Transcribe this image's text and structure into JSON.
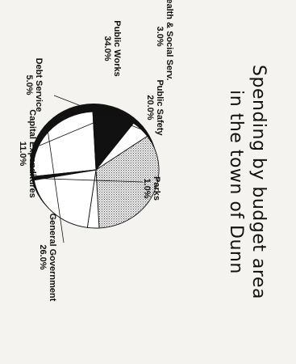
{
  "chart_data": {
    "type": "pie",
    "title": "Spending by budget area",
    "subtitle": "in the town of Dunn",
    "slices": [
      {
        "label": "General Government",
        "value": 26.0,
        "value_label": "26.0%",
        "fill": "#ffffff"
      },
      {
        "label": "Capital Expenditures",
        "value": 11.0,
        "value_label": "11.0%",
        "fill": "#111111"
      },
      {
        "label": "Debt Service",
        "value": 5.0,
        "value_label": "5.0%",
        "fill": "#ffffff"
      },
      {
        "label": "Public Works",
        "value": 34.0,
        "value_label": "34.0%",
        "fill": "dots"
      },
      {
        "label": "Health & Social Serv.",
        "value": 3.0,
        "value_label": "3.0%",
        "fill": "#ffffff"
      },
      {
        "label": "Public Safety",
        "value": 20.0,
        "value_label": "20.0%",
        "fill": "#ffffff"
      },
      {
        "label": "Parks",
        "value": 1.0,
        "value_label": "1.0%",
        "fill": "#111111"
      }
    ],
    "legend": "none",
    "rotated": "90deg clockwise",
    "colors": {
      "ink": "#111111",
      "paper": "#f4f3ef"
    }
  }
}
